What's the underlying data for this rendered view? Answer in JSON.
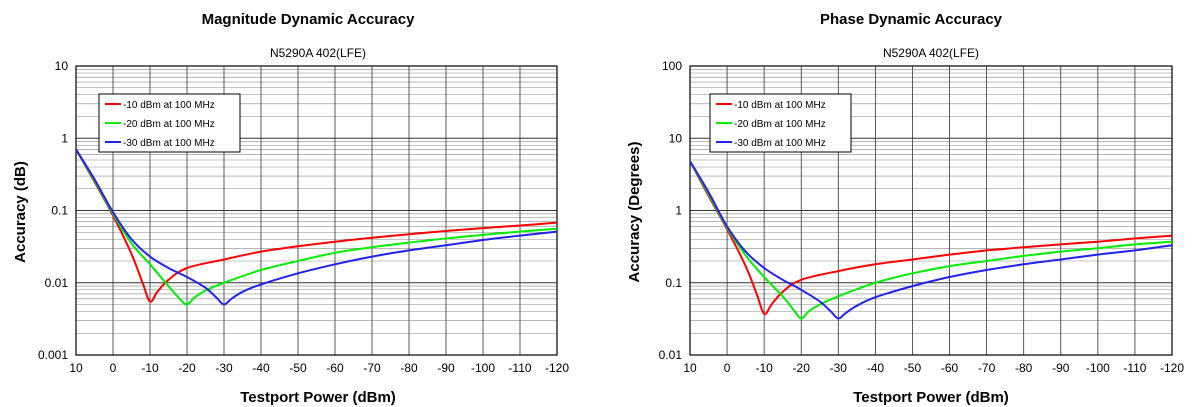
{
  "chart_data": [
    {
      "type": "line",
      "title": "Magnitude Dynamic Accuracy",
      "subtitle": "N5290A 402(LFE)",
      "xlabel": "Testport Power (dBm)",
      "ylabel": "Accuracy (dB)",
      "xlim": [
        10,
        -120
      ],
      "ylim": [
        0.001,
        10
      ],
      "yscale": "log",
      "x_ticks": [
        10,
        0,
        -10,
        -20,
        -30,
        -40,
        -50,
        -60,
        -70,
        -80,
        -90,
        -100,
        -110,
        -120
      ],
      "x_tick_labels": [
        "10",
        "0",
        "-10",
        "-20",
        "-30",
        "-40",
        "-50",
        "-60",
        "-70",
        "-80",
        "-90",
        "-100",
        "-110",
        "-120"
      ],
      "y_ticks": [
        0.001,
        0.01,
        0.1,
        1,
        10
      ],
      "y_tick_labels": [
        "0.001",
        "0.01",
        "0.1",
        "1",
        "10"
      ],
      "grid": true,
      "legend_position": "top-left",
      "series": [
        {
          "name": "-10 dBm at 100 MHz",
          "color": "#ff0000",
          "x": [
            10,
            5,
            0,
            -5,
            -8,
            -10,
            -12,
            -15,
            -20,
            -30,
            -40,
            -50,
            -60,
            -70,
            -80,
            -90,
            -100,
            -110,
            -120
          ],
          "y": [
            0.7,
            0.25,
            0.085,
            0.025,
            0.01,
            0.0055,
            0.0075,
            0.011,
            0.016,
            0.021,
            0.027,
            0.032,
            0.037,
            0.042,
            0.047,
            0.052,
            0.057,
            0.062,
            0.068
          ]
        },
        {
          "name": "-20 dBm at 100 MHz",
          "color": "#00ee00",
          "x": [
            10,
            5,
            0,
            -5,
            -10,
            -15,
            -18,
            -20,
            -22,
            -25,
            -30,
            -40,
            -50,
            -60,
            -70,
            -80,
            -90,
            -100,
            -110,
            -120
          ],
          "y": [
            0.7,
            0.26,
            0.09,
            0.035,
            0.018,
            0.009,
            0.006,
            0.005,
            0.0062,
            0.0078,
            0.01,
            0.015,
            0.02,
            0.026,
            0.031,
            0.036,
            0.041,
            0.046,
            0.051,
            0.056
          ]
        },
        {
          "name": "-30 dBm at 100 MHz",
          "color": "#2222ee",
          "x": [
            10,
            5,
            0,
            -5,
            -10,
            -15,
            -20,
            -25,
            -28,
            -30,
            -32,
            -35,
            -40,
            -50,
            -60,
            -70,
            -80,
            -90,
            -100,
            -110,
            -120
          ],
          "y": [
            0.7,
            0.27,
            0.095,
            0.04,
            0.023,
            0.016,
            0.012,
            0.0085,
            0.0062,
            0.005,
            0.006,
            0.0075,
            0.0095,
            0.0135,
            0.018,
            0.023,
            0.028,
            0.033,
            0.039,
            0.045,
            0.051
          ]
        }
      ]
    },
    {
      "type": "line",
      "title": "Phase Dynamic Accuracy",
      "subtitle": "N5290A 402(LFE)",
      "xlabel": "Testport Power (dBm)",
      "ylabel": "Accuracy (Degrees)",
      "xlim": [
        10,
        -120
      ],
      "ylim": [
        0.01,
        100
      ],
      "yscale": "log",
      "x_ticks": [
        10,
        0,
        -10,
        -20,
        -30,
        -40,
        -50,
        -60,
        -70,
        -80,
        -90,
        -100,
        -110,
        -120
      ],
      "x_tick_labels": [
        "10",
        "0",
        "-10",
        "-20",
        "-30",
        "-40",
        "-50",
        "-60",
        "-70",
        "-80",
        "-90",
        "-100",
        "-110",
        "-120"
      ],
      "y_ticks": [
        0.01,
        0.1,
        1,
        10,
        100
      ],
      "y_tick_labels": [
        "0.01",
        "0.1",
        "1",
        "10",
        "100"
      ],
      "grid": true,
      "legend_position": "top-left",
      "series": [
        {
          "name": "-10 dBm at 100 MHz",
          "color": "#ff0000",
          "x": [
            10,
            5,
            0,
            -5,
            -8,
            -10,
            -12,
            -15,
            -20,
            -30,
            -40,
            -50,
            -60,
            -70,
            -80,
            -90,
            -100,
            -110,
            -120
          ],
          "y": [
            4.8,
            1.6,
            0.55,
            0.17,
            0.07,
            0.037,
            0.05,
            0.075,
            0.11,
            0.145,
            0.18,
            0.21,
            0.245,
            0.28,
            0.31,
            0.34,
            0.37,
            0.41,
            0.45
          ]
        },
        {
          "name": "-20 dBm at 100 MHz",
          "color": "#00ee00",
          "x": [
            10,
            5,
            0,
            -5,
            -10,
            -15,
            -18,
            -20,
            -22,
            -25,
            -30,
            -40,
            -50,
            -60,
            -70,
            -80,
            -90,
            -100,
            -110,
            -120
          ],
          "y": [
            4.8,
            1.7,
            0.58,
            0.24,
            0.12,
            0.065,
            0.042,
            0.032,
            0.04,
            0.05,
            0.065,
            0.1,
            0.135,
            0.17,
            0.2,
            0.235,
            0.27,
            0.3,
            0.34,
            0.37
          ]
        },
        {
          "name": "-30 dBm at 100 MHz",
          "color": "#2222ee",
          "x": [
            10,
            5,
            0,
            -5,
            -10,
            -15,
            -20,
            -25,
            -28,
            -30,
            -32,
            -35,
            -40,
            -50,
            -60,
            -70,
            -80,
            -90,
            -100,
            -110,
            -120
          ],
          "y": [
            4.8,
            1.8,
            0.6,
            0.27,
            0.16,
            0.11,
            0.08,
            0.055,
            0.04,
            0.032,
            0.038,
            0.048,
            0.063,
            0.09,
            0.12,
            0.15,
            0.18,
            0.21,
            0.245,
            0.28,
            0.33
          ]
        }
      ]
    }
  ]
}
